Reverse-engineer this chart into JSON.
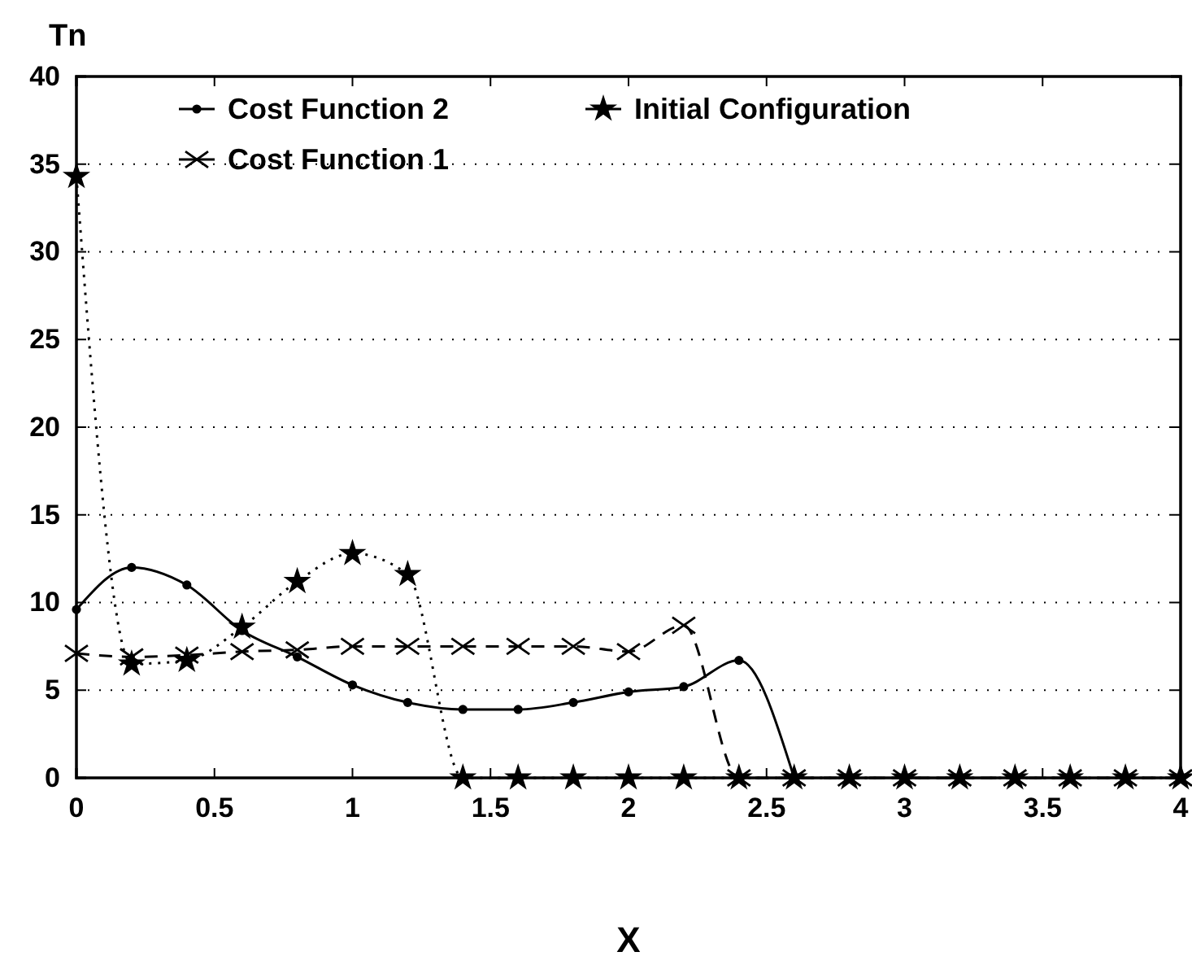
{
  "chart_data": {
    "type": "line",
    "xlabel": "X",
    "ylabel": "Tn",
    "xlim": [
      0,
      4
    ],
    "ylim": [
      0,
      40
    ],
    "xticks": [
      0,
      0.5,
      1,
      1.5,
      2,
      2.5,
      3,
      3.5,
      4
    ],
    "yticks": [
      0,
      5,
      10,
      15,
      20,
      25,
      30,
      35,
      40
    ],
    "grid": "y",
    "legend": "top",
    "series": [
      {
        "name": "Cost Function 2",
        "color": "#000000",
        "marker": "circle",
        "line_style": "solid",
        "x": [
          0,
          0.2,
          0.4,
          0.6,
          0.8,
          1.0,
          1.2,
          1.4,
          1.6,
          1.8,
          2.0,
          2.2,
          2.4,
          2.6
        ],
        "values": [
          9.6,
          12.0,
          11.0,
          8.4,
          6.9,
          5.3,
          4.3,
          3.9,
          3.9,
          4.3,
          4.9,
          5.2,
          6.7,
          0
        ]
      },
      {
        "name": "Initial Configuration",
        "color": "#000000",
        "marker": "star",
        "line_style": "dotted",
        "x": [
          0,
          0.2,
          0.4,
          0.6,
          0.8,
          1.0,
          1.2,
          1.4,
          1.6,
          1.8,
          2.0,
          2.2,
          2.4,
          2.6,
          2.8,
          3.0,
          3.2,
          3.4,
          3.6,
          3.8,
          4.0
        ],
        "values": [
          34.3,
          6.5,
          6.7,
          8.6,
          11.2,
          12.8,
          11.6,
          0,
          0,
          0,
          0,
          0,
          0,
          0,
          0,
          0,
          0,
          0,
          0,
          0,
          0
        ]
      },
      {
        "name": "Cost Function 1",
        "color": "#000000",
        "marker": "cross",
        "line_style": "dashed",
        "x": [
          0,
          0.2,
          0.4,
          0.6,
          0.8,
          1.0,
          1.2,
          1.4,
          1.6,
          1.8,
          2.0,
          2.2,
          2.4,
          2.6,
          2.8,
          3.0,
          3.2,
          3.4,
          3.6,
          3.8,
          4.0
        ],
        "values": [
          7.1,
          6.9,
          7.0,
          7.2,
          7.3,
          7.5,
          7.5,
          7.5,
          7.5,
          7.5,
          7.2,
          8.7,
          0,
          0,
          0,
          0,
          0,
          0,
          0,
          0,
          0
        ]
      }
    ]
  }
}
